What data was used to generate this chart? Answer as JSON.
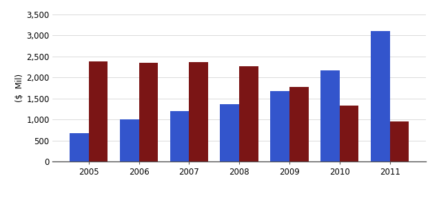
{
  "years": [
    "2005",
    "2006",
    "2007",
    "2008",
    "2009",
    "2010",
    "2011"
  ],
  "netflix_revenues": [
    670,
    997,
    1205,
    1365,
    1670,
    2163,
    3100
  ],
  "blockbuster_revenues": [
    2390,
    2350,
    2370,
    2270,
    1775,
    1330,
    960
  ],
  "netflix_color": "#3355CC",
  "blockbuster_color": "#7B1515",
  "ylabel": "($  Mil)",
  "ylim": [
    0,
    3500
  ],
  "yticks": [
    0,
    500,
    1000,
    1500,
    2000,
    2500,
    3000,
    3500
  ],
  "bg_color": "#FFFFFF",
  "bar_width": 0.38
}
